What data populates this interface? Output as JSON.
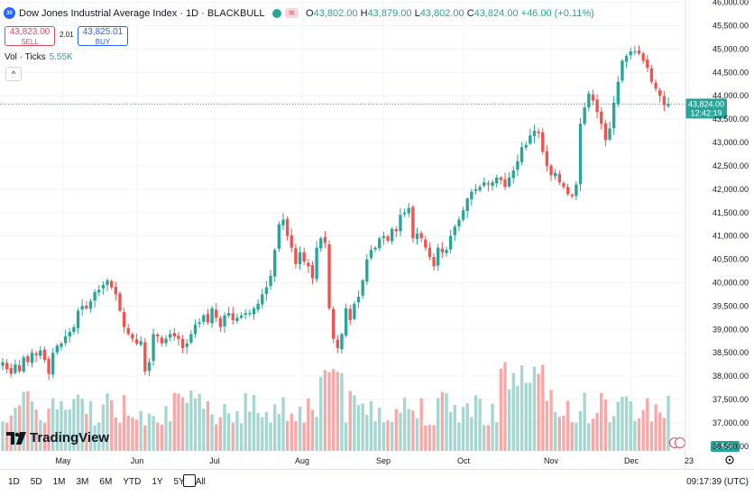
{
  "header": {
    "symbol_badge": "30",
    "title": "Dow Jones Industrial Average Index · 1D · BLACKBULL",
    "market_pill": "≋",
    "ohlc": [
      {
        "k": "O",
        "v": "43,802.00"
      },
      {
        "k": "H",
        "v": "43,879.00"
      },
      {
        "k": "L",
        "v": "43,802.00"
      },
      {
        "k": "C",
        "v": "43,824.00"
      }
    ],
    "change": "+46.00 (+0.11%)"
  },
  "trade": {
    "sell_price": "43,823.00",
    "sell_label": "SELL",
    "spread": "2.01",
    "buy_price": "43,825.01",
    "buy_label": "BUY"
  },
  "volume_legend": {
    "label": "Vol · Ticks",
    "value": "5.55K"
  },
  "collapse_icon": "^",
  "logo": {
    "text": "TradingView"
  },
  "colors": {
    "up": "#26a69a",
    "down": "#ef5350",
    "up_vol": "#a5d6cf",
    "down_vol": "#f7a9a7",
    "accent": "#2962ff"
  },
  "price_tag": {
    "value": "43,824.00",
    "countdown": "12:42:19"
  },
  "volume_tag": "5.55K",
  "axis_gear_icon": "gear-icon",
  "bottom": {
    "ranges": [
      "1D",
      "5D",
      "1M",
      "3M",
      "6M",
      "YTD",
      "1Y",
      "5Y",
      "All"
    ],
    "calendar_icon": "calendar-range-icon",
    "clock": "09:17:39 (UTC)"
  },
  "chart_data": {
    "type": "candlestick",
    "interval": "1D",
    "y_axis": {
      "ticks": [
        "46,000.00",
        "45,500.00",
        "45,000.00",
        "44,500.00",
        "44,000.00",
        "43,500.00",
        "43,000.00",
        "42,500.00",
        "42,000.00",
        "41,500.00",
        "41,000.00",
        "40,500.00",
        "40,000.00",
        "39,500.00",
        "39,000.00",
        "38,500.00",
        "38,000.00",
        "37,500.00",
        "37,000.00",
        "36,500.00"
      ],
      "tick_values": [
        46000,
        45500,
        45000,
        44500,
        44000,
        43500,
        43000,
        42500,
        42000,
        41500,
        41000,
        40500,
        40000,
        39500,
        39000,
        38500,
        38000,
        37500,
        37000,
        36500
      ],
      "range": [
        36400,
        46050
      ]
    },
    "x_axis": {
      "labels": [
        "May",
        "Jun",
        "Jul",
        "Aug",
        "Sep",
        "Oct",
        "Nov",
        "Dec",
        "23"
      ]
    },
    "closes": [
      38300,
      38150,
      38050,
      38250,
      38100,
      38400,
      38300,
      38500,
      38450,
      38550,
      38350,
      38050,
      38500,
      38650,
      38700,
      38850,
      38950,
      39050,
      39400,
      39500,
      39450,
      39600,
      39800,
      39850,
      39950,
      40050,
      39900,
      39750,
      39400,
      39050,
      38900,
      38800,
      38700,
      38750,
      38100,
      38300,
      38900,
      38850,
      38700,
      38800,
      38900,
      38850,
      38800,
      38600,
      38700,
      38900,
      39100,
      39150,
      39300,
      39150,
      39450,
      39250,
      39050,
      39300,
      39350,
      39200,
      39250,
      39300,
      39350,
      39350,
      39450,
      39550,
      39750,
      39900,
      40150,
      40700,
      41250,
      41350,
      41000,
      40750,
      40400,
      40650,
      40450,
      40350,
      40100,
      40750,
      40950,
      40850,
      39450,
      38800,
      38600,
      38900,
      39450,
      39200,
      39550,
      39700,
      40050,
      40500,
      40700,
      40750,
      40950,
      41000,
      40900,
      41150,
      41100,
      41450,
      41500,
      41600,
      40950,
      41050,
      40950,
      40750,
      40550,
      40350,
      40750,
      40650,
      40700,
      41000,
      41200,
      41350,
      41550,
      41800,
      41950,
      42000,
      42050,
      42150,
      42100,
      42150,
      42250,
      42200,
      42050,
      42250,
      42400,
      42600,
      42900,
      42950,
      43150,
      43250,
      43200,
      42800,
      42500,
      42300,
      42350,
      42150,
      42050,
      41900,
      41850,
      42100,
      43400,
      43750,
      44050,
      43900,
      43650,
      43400,
      43050,
      43300,
      43850,
      44300,
      44750,
      44850,
      44950,
      44950,
      44900,
      44750,
      44600,
      44300,
      44150,
      44000,
      43800,
      43824
    ],
    "volume_range": [
      0,
      5.55
    ],
    "volume_last": "5.55K"
  }
}
